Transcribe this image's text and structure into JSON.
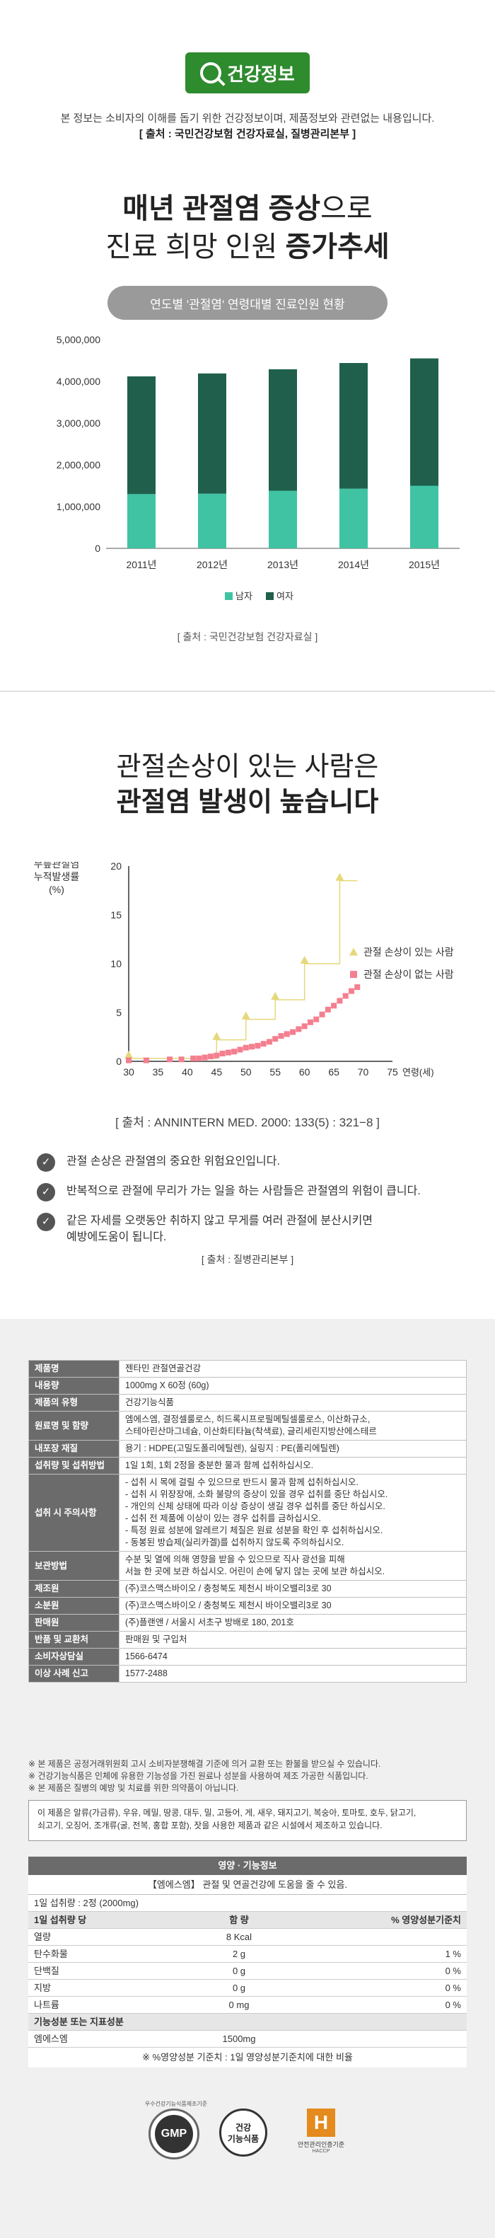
{
  "section1": {
    "badge_label": "건강정보",
    "intro_line1": "본 정보는 소비자의 이해를 돕기 위한 건강정보이며, 제품정보와 관련없는 내용입니다.",
    "intro_line2": "[ 출처 : 국민건강보험 건강자료실, 질병관리본부 ]",
    "headline1_bold": "매년 관절염 증상",
    "headline1_rest": "으로",
    "headline2_light": "진료 희망 인원 ",
    "headline2_bold": "증가추세",
    "pill_label": "연도별  '관절염' 연령대별 진료인원 현황",
    "source": "[ 출처 : 국민건강보험 건강자료실 ]"
  },
  "colors": {
    "female": "#1f5f4c",
    "male": "#3fc3a3",
    "badge": "#2e8b2e",
    "triangle": "#e5d87a",
    "square": "#f47f8f",
    "axis": "#333333"
  },
  "chart_data": [
    {
      "type": "bar",
      "stacked": true,
      "categories": [
        "2011년",
        "2012년",
        "2013년",
        "2014년",
        "2015년"
      ],
      "series": [
        {
          "name": "남자",
          "values": [
            1300000,
            1310000,
            1380000,
            1430000,
            1500000
          ]
        },
        {
          "name": "여자",
          "values": [
            2820000,
            2880000,
            2910000,
            3010000,
            3050000
          ]
        }
      ],
      "ylim": [
        0,
        5000000
      ],
      "yticks": [
        "5,000,000",
        "4,000,000",
        "3,000,000",
        "2,000,000",
        "1,000,000",
        "0"
      ],
      "legend": "bottom",
      "grid": false
    },
    {
      "type": "scatter",
      "ylabel": "무릎관절염\n누적발생률\n(%)",
      "xlabel": "연령(세)",
      "xlim": [
        30,
        75
      ],
      "ylim": [
        0,
        20
      ],
      "xticks": [
        "30",
        "35",
        "40",
        "45",
        "50",
        "55",
        "60",
        "65",
        "70",
        "75"
      ],
      "yticks": [
        "0",
        "5",
        "10",
        "15",
        "20"
      ],
      "series": [
        {
          "name": "관절 손상이 있는 사람",
          "marker": "triangle",
          "x": [
            30,
            45,
            50,
            55,
            60,
            66
          ],
          "y": [
            0.3,
            2.2,
            4.3,
            6.3,
            10,
            18.5
          ]
        },
        {
          "name": "관절 손상이 없는 사람",
          "marker": "square",
          "x": [
            30,
            33,
            37,
            39,
            41,
            42,
            43,
            44,
            45,
            46,
            47,
            48,
            49,
            50,
            51,
            52,
            53,
            54,
            55,
            56,
            57,
            58,
            59,
            60,
            61,
            62,
            63,
            64,
            65,
            66,
            67,
            68,
            69
          ],
          "y": [
            0.1,
            0.1,
            0.2,
            0.2,
            0.3,
            0.3,
            0.4,
            0.5,
            0.6,
            0.8,
            0.9,
            1.0,
            1.2,
            1.4,
            1.5,
            1.6,
            1.8,
            2.0,
            2.3,
            2.6,
            2.8,
            3.0,
            3.3,
            3.6,
            4.0,
            4.3,
            4.8,
            5.3,
            5.7,
            6.2,
            6.7,
            7.2,
            7.6
          ]
        }
      ],
      "legend": "right"
    }
  ],
  "section2": {
    "headline1": "관절손상이 있는 사람은",
    "headline2": "관절염 발생이 높습니다",
    "source": "[ 출처 : ANNINTERN MED. 2000: 133(5) : 321−8 ]",
    "bullets": [
      "관절 손상은 관절염의 중요한 위험요인입니다.",
      "반복적으로 관절에 무리가 가는 일을 하는 사람들은 관절염의 위험이 큽니다.",
      "같은 자세를 오랫동안 취하지 않고 무게를 여러 관절에 분산시키면\n예방에도움이 됩니다."
    ],
    "bullet_source": "[ 출처 : 질병관리본부 ]",
    "check_glyph": "✓"
  },
  "spec_table": [
    {
      "key": "제품명",
      "value": "젠타민 관절연골건강"
    },
    {
      "key": "내용량",
      "value": "1000mg X 60정 (60g)"
    },
    {
      "key": "제품의 유형",
      "value": "건강기능식품"
    },
    {
      "key": "원료명 및 함량",
      "value": "엠에스엠, 결정셀룰로스, 히드록시프로필메틸셀룰로스, 이산화규소,\n스테아린산마그네슘, 이산화티타늄(착색료), 글리세린지방산에스테르"
    },
    {
      "key": "내포장 재질",
      "value": "용기 : HDPE(고밀도폴리에틸렌), 실링지 : PE(폴리에틸렌)"
    },
    {
      "key": "섭취량 및 섭취방법",
      "value": "1일 1회, 1회 2정을 충분한 물과 함께 섭취하십시오."
    },
    {
      "key": "섭취 시 주의사항",
      "value": "- 섭취 시 목에 걸릴 수 있으므로 반드시 물과 함께 섭취하십시오.\n- 섭취 시 위장장애, 소화 불량의 증상이 있을 경우 섭취를 중단 하십시오.\n- 개인의 신체 상태에 따라 이상 증상이 생길 경우 섭취를 중단 하십시오.\n- 섭취 전 제품에 이상이 있는 경우 섭취를 금하십시오.\n- 특정 원료 성분에 알레르기 체질은 원료 성분을 확인 후 섭취하십시오.\n- 동봉된 방습제(실리카겔)를 섭취하지 않도록 주의하십시오."
    },
    {
      "key": "보관방법",
      "value": "수분 및 열에 의해 영향을 받을 수 있으므로 직사 광선을 피해\n서늘 한 곳에 보관 하십시오. 어린이 손에 닿지 않는 곳에 보관 하십시오."
    },
    {
      "key": "제조원",
      "value": "(주)코스맥스바이오 / 충청북도 제천시 바이오밸리3로 30"
    },
    {
      "key": "소분원",
      "value": "(주)코스맥스바이오 / 충청북도 제천시 바이오밸리3로 30"
    },
    {
      "key": "판매원",
      "value": "(주)플랜앤 / 서울시 서초구 방배로 180, 201호"
    },
    {
      "key": "반품 및 교환처",
      "value": "판매원 및 구입처"
    },
    {
      "key": "소비자상담실",
      "value": "1566-6474"
    },
    {
      "key": "이상 사례 신고",
      "value": "1577-2488"
    }
  ],
  "notes": [
    "※ 본 제품은 공정거래위원회 고시 소비자분쟁해결 기준에 의거 교환 또는 환불을 받으실 수 있습니다.",
    "※ 건강기능식품은 인체에 유용한 기능성을 가진 원료나 성분을 사용하여 제조 가공한 식품입니다.",
    "※ 본 제품은 질병의 예방 및 치료를 위한 의약품이 아닙니다."
  ],
  "allergy_text": "이 제품은 알류(가금류), 우유, 메밀, 땅콩, 대두, 밀, 고등어, 게, 새우, 돼지고기, 복숭아, 토마토, 호두, 닭고기,\n쇠고기, 오징어, 조개류(굴, 전복, 홍합 포함), 잣을 사용한 제품과 같은 시설에서 제조하고 있습니다.",
  "nutrition": {
    "title": "영양 · 기능정보",
    "subtitle": "【엠에스엠】 관절 및 연골건강에 도움을 줄 수 있음.",
    "serving": "1일 섭취량 : 2정 (2000mg)",
    "header": [
      "1일 섭취량 당",
      "함 량",
      "% 영양성분기준치"
    ],
    "rows": [
      [
        "열량",
        "8 Kcal",
        ""
      ],
      [
        "탄수화물",
        "2 g",
        "1 %"
      ],
      [
        "단백질",
        "0 g",
        "0 %"
      ],
      [
        "지방",
        "0 g",
        "0 %"
      ],
      [
        "나트륨",
        "0 mg",
        "0 %"
      ]
    ],
    "func_header": "기능성분 또는 지표성분",
    "func_row": [
      "엠에스엠",
      "1500mg",
      ""
    ],
    "footer": "※ %영양성분 기준치 : 1일 영양성분기준치에 대한 비율"
  },
  "logos": {
    "gmp_top": "우수건강기능식품제조기준",
    "gmp": "GMP",
    "kfunc": "건강\n기능식품",
    "haccp_mark": "H",
    "haccp_line1": "안전관리인증기준",
    "haccp_line2": "HACCP"
  }
}
